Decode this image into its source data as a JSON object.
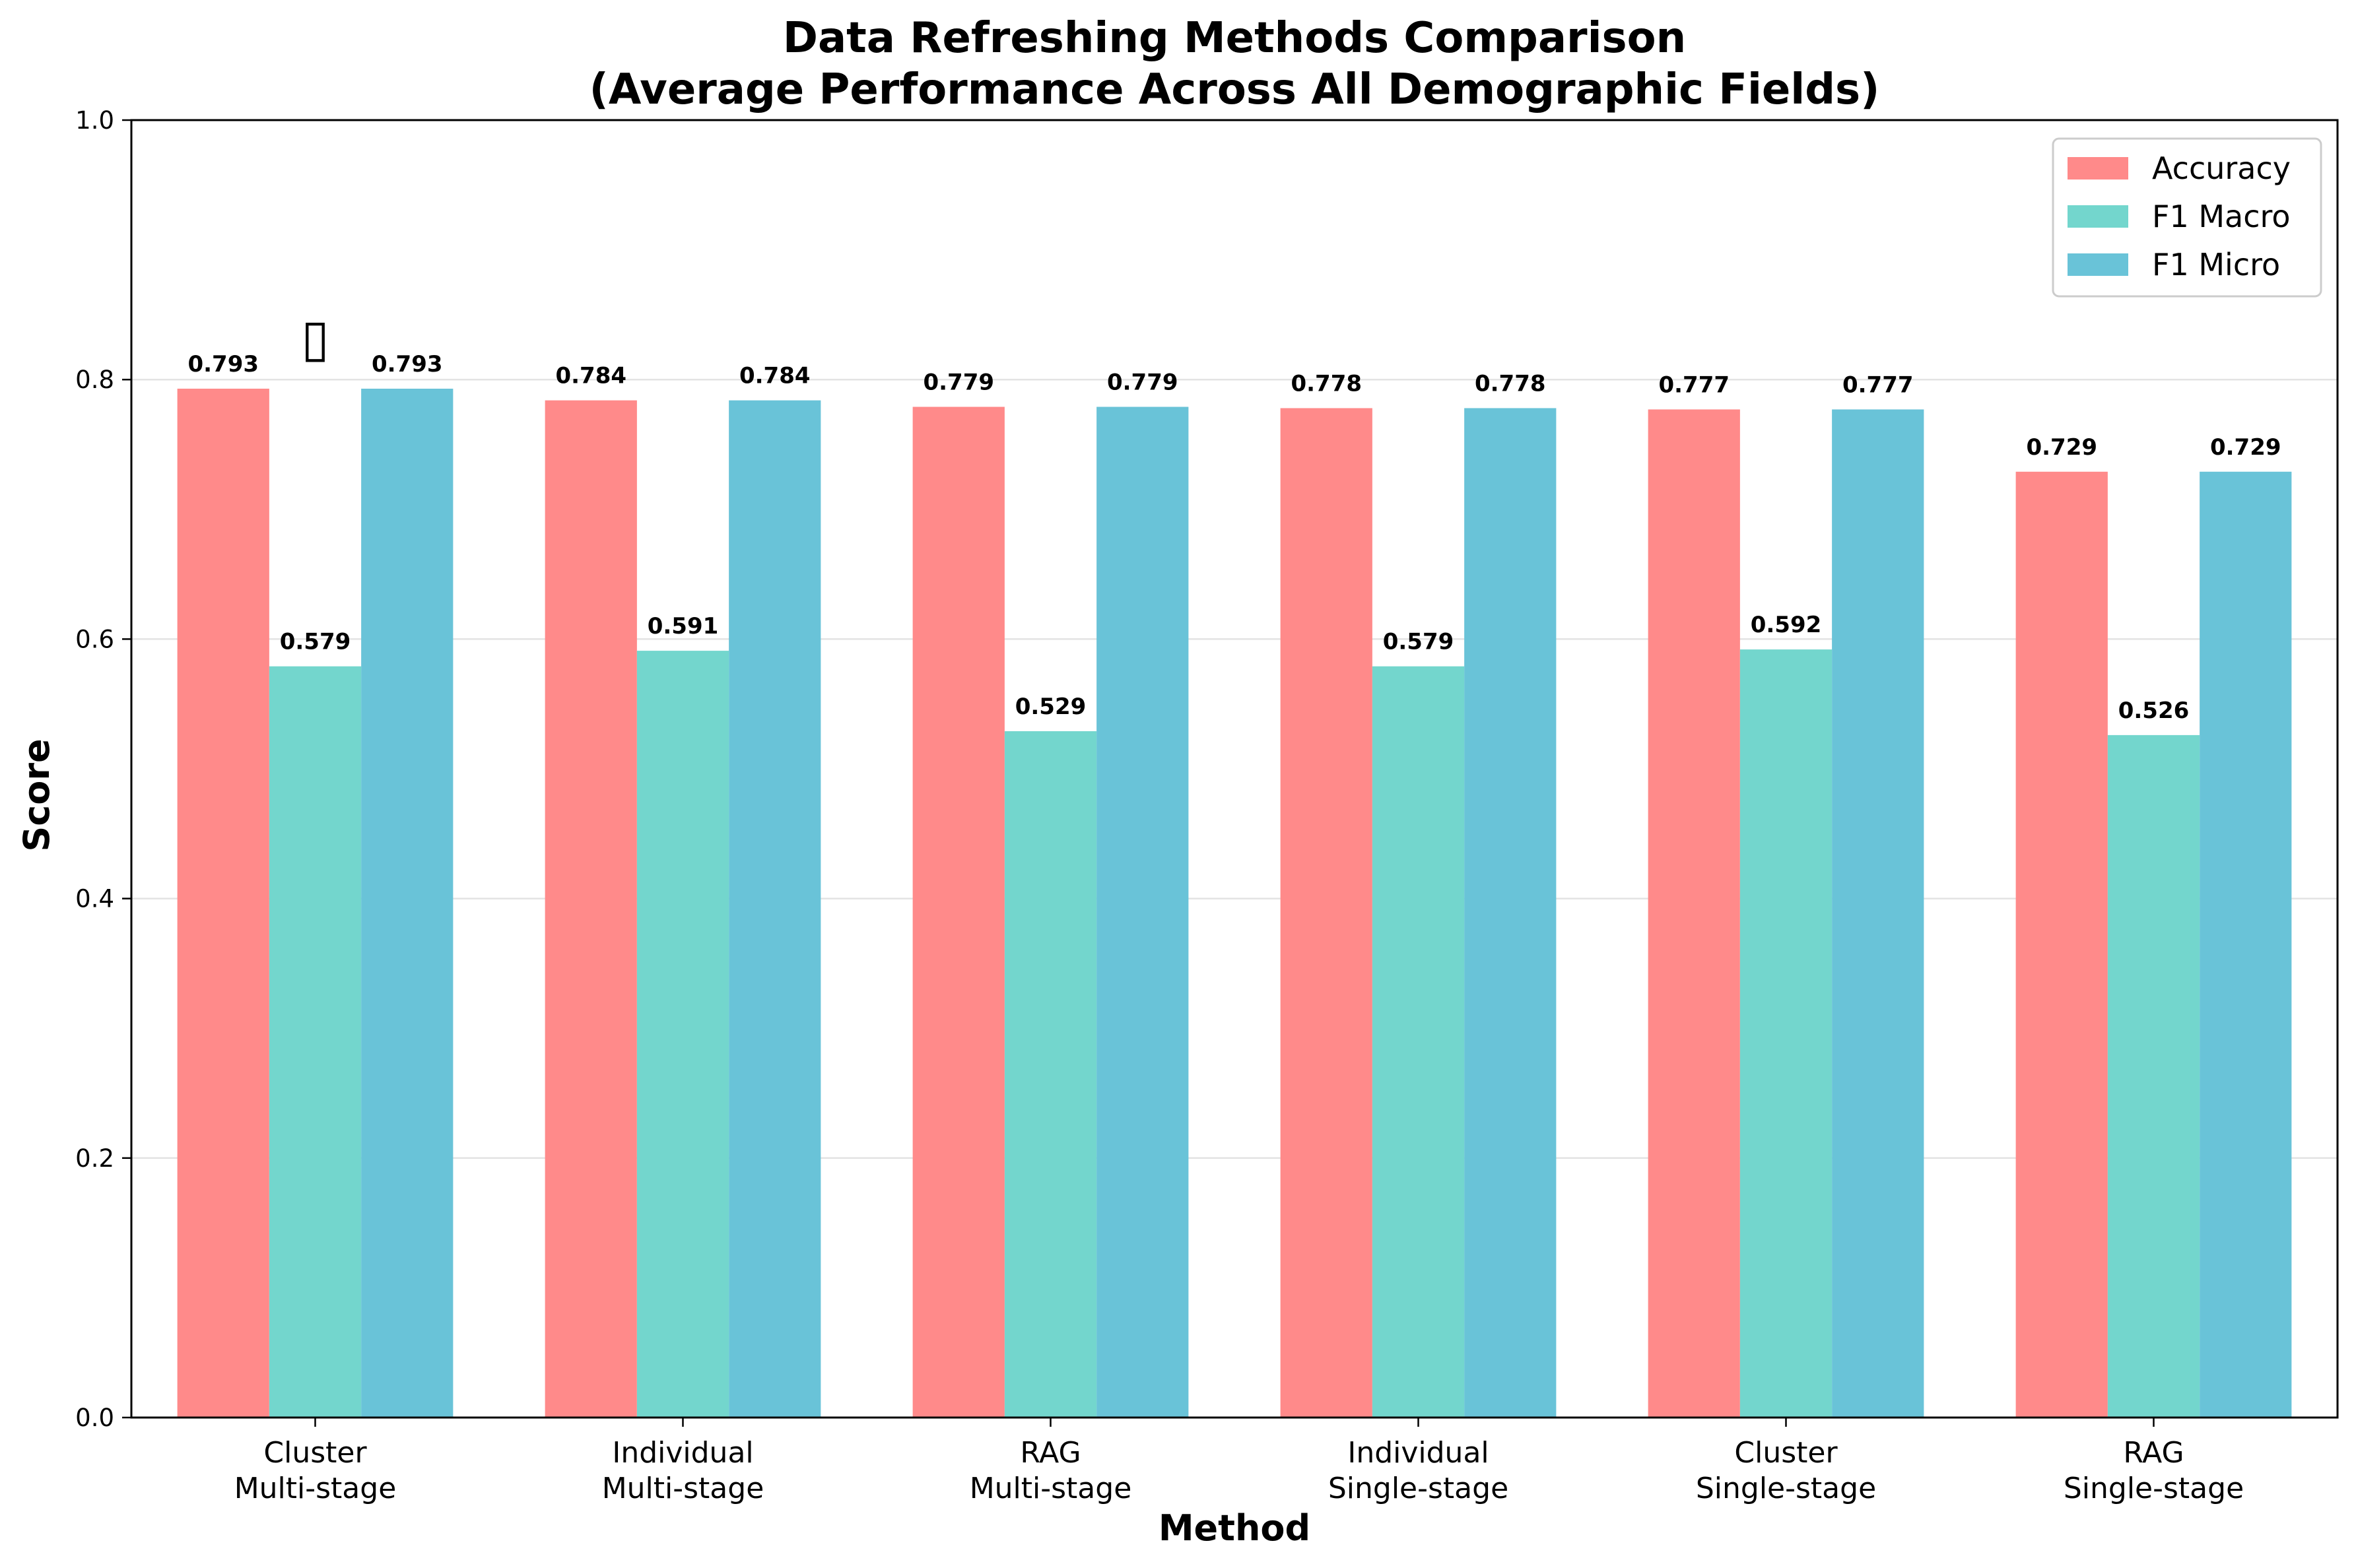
{
  "chart_data": {
    "type": "bar",
    "title": "Data Refreshing Methods Comparison",
    "subtitle": "(Average Performance Across All Demographic Fields)",
    "xlabel": "Method",
    "ylabel": "Score",
    "ylim": [
      0,
      1.0
    ],
    "yticks": [
      "0.0",
      "0.2",
      "0.4",
      "0.6",
      "0.8",
      "1.0"
    ],
    "grid": "y",
    "legend_position": "top-right",
    "categories": [
      [
        "Cluster",
        "Multi-stage"
      ],
      [
        "Individual",
        "Multi-stage"
      ],
      [
        "RAG",
        "Multi-stage"
      ],
      [
        "Individual",
        "Single-stage"
      ],
      [
        "Cluster",
        "Single-stage"
      ],
      [
        "RAG",
        "Single-stage"
      ]
    ],
    "series": [
      {
        "name": "Accuracy",
        "color": "#FF8A8A",
        "values": [
          0.793,
          0.784,
          0.779,
          0.778,
          0.777,
          0.729
        ],
        "labels": [
          "0.793",
          "0.784",
          "0.779",
          "0.778",
          "0.777",
          "0.729"
        ]
      },
      {
        "name": "F1 Macro",
        "color": "#73D6CD",
        "values": [
          0.579,
          0.591,
          0.529,
          0.579,
          0.592,
          0.526
        ],
        "labels": [
          "0.579",
          "0.591",
          "0.529",
          "0.579",
          "0.592",
          "0.526"
        ]
      },
      {
        "name": "F1 Micro",
        "color": "#69C3D8",
        "values": [
          0.793,
          0.784,
          0.779,
          0.778,
          0.777,
          0.729
        ],
        "labels": [
          "0.793",
          "0.784",
          "0.779",
          "0.778",
          "0.777",
          "0.729"
        ]
      }
    ],
    "best_marker": {
      "category_index": 0,
      "symbol": "▯"
    }
  }
}
